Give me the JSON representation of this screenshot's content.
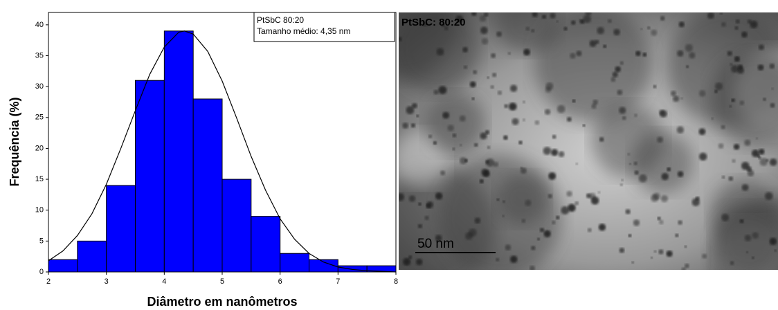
{
  "chart_data": {
    "type": "histogram",
    "x_label": "Diâmetro em nanômetros",
    "y_label": "Frequência (%)",
    "bins": [
      2,
      2.5,
      3,
      3.5,
      4,
      4.5,
      5,
      5.5,
      6,
      6.5,
      7,
      7.5,
      8
    ],
    "values": [
      2,
      5,
      14,
      31,
      39,
      28,
      15,
      9,
      3,
      2,
      1,
      1
    ],
    "color": "#0000ff",
    "curve": {
      "color": "#000000",
      "x": [
        2,
        2.25,
        2.5,
        2.75,
        3,
        3.25,
        3.5,
        3.75,
        4,
        4.25,
        4.35,
        4.5,
        4.75,
        5,
        5.25,
        5.5,
        5.75,
        6,
        6.25,
        6.5,
        6.75,
        7,
        7.25,
        7.5,
        7.75,
        8
      ],
      "values": [
        1.8,
        3.4,
        5.9,
        9.4,
        14.2,
        20.0,
        26.1,
        32.0,
        36.4,
        38.8,
        39,
        38.5,
        35.7,
        30.9,
        24.9,
        18.7,
        13.2,
        8.6,
        5.3,
        3.0,
        1.6,
        0.8,
        0.4,
        0.2,
        0.1,
        0.0
      ]
    },
    "legend": [
      "PtSbC 80:20",
      "Tamanho médio: 4,35 nm"
    ],
    "xlim": [
      2,
      8
    ],
    "xticks": [
      2,
      3,
      4,
      5,
      6,
      7,
      8
    ],
    "ylim": [
      0,
      42
    ],
    "yticks": [
      0,
      5,
      10,
      15,
      20,
      25,
      30,
      35,
      40
    ]
  },
  "image": {
    "label": "PtSbC: 80:20",
    "scale_bar": "50 nm"
  }
}
